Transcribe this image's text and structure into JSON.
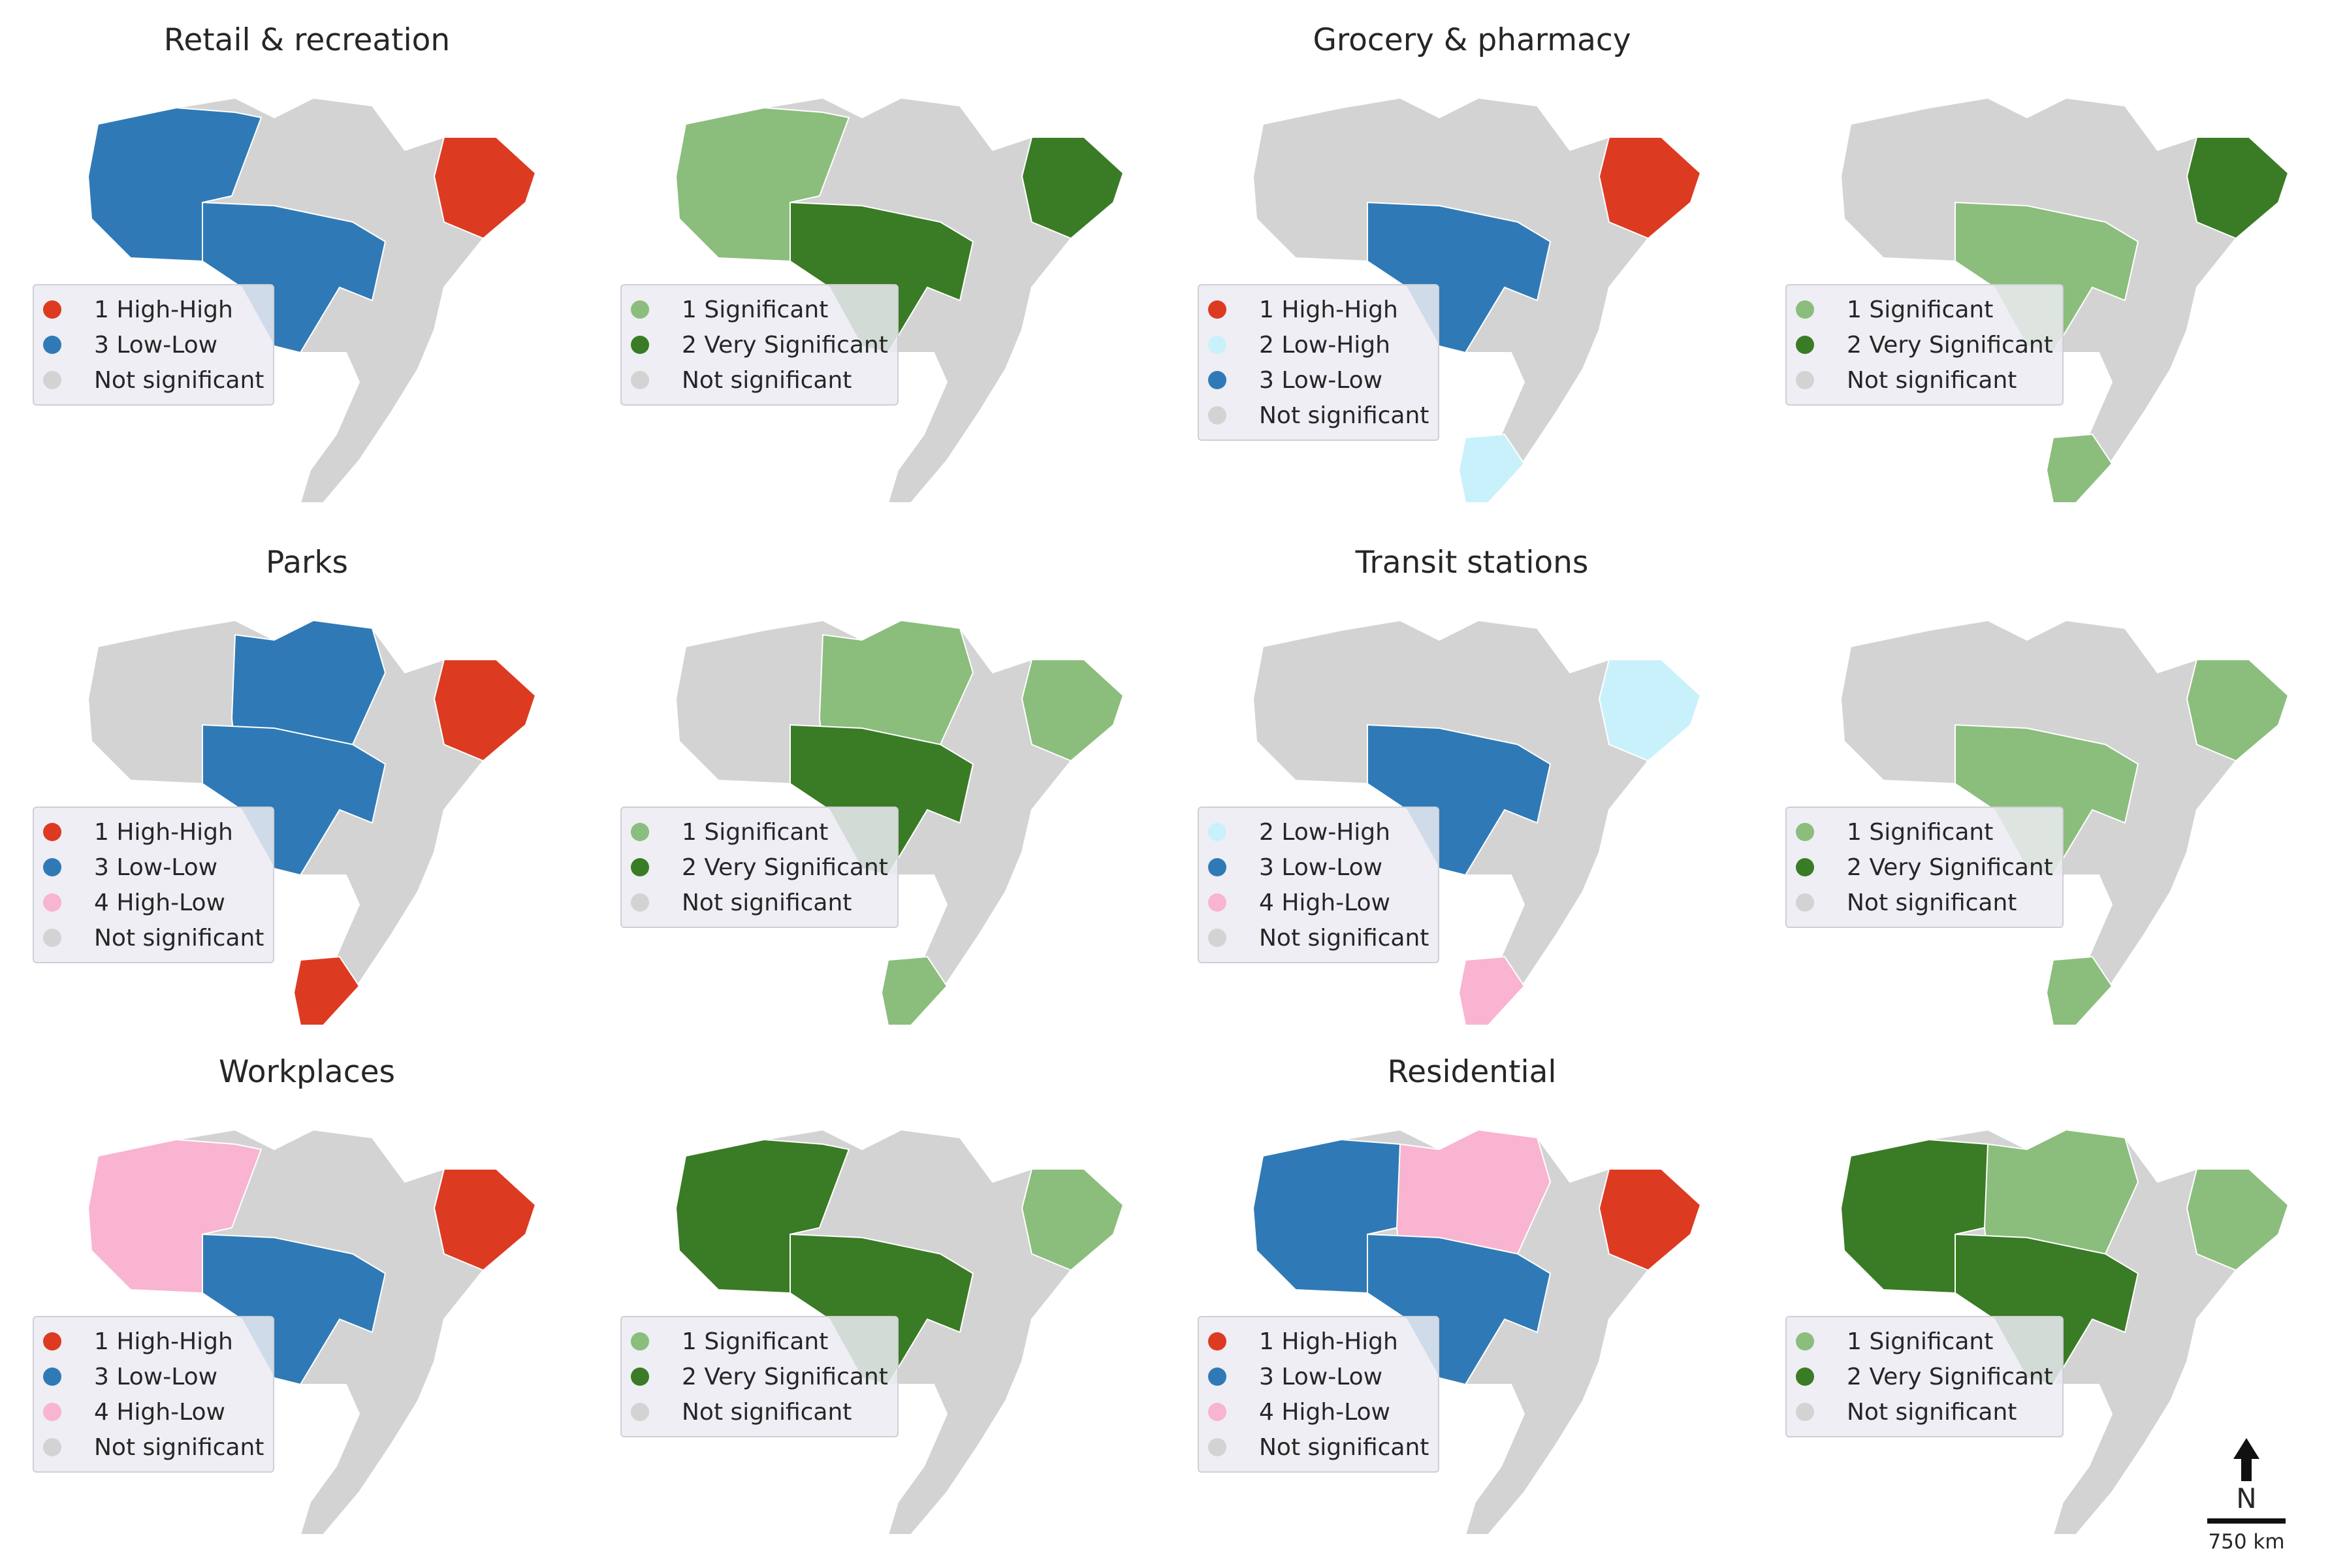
{
  "colors": {
    "high_high": "#dd3a22",
    "low_low": "#2f7ab6",
    "low_high": "#c9f1fb",
    "high_low": "#f8b4d0",
    "significant": "#8bbd7c",
    "very_significant": "#3a7b25",
    "not_significant": "#d3d3d3",
    "legend_background": "#eaeaf2"
  },
  "panels": [
    {
      "title": "Retail & recreation",
      "cluster_legend": [
        {
          "label": "1 High-High",
          "color": "#dd3a22"
        },
        {
          "label": "3 Low-Low",
          "color": "#2f7ab6"
        },
        {
          "label": "Not significant",
          "color": "#d3d3d3"
        }
      ],
      "significance_legend": [
        {
          "label": "1 Significant",
          "color": "#8bbd7c"
        },
        {
          "label": "2 Very Significant",
          "color": "#3a7b25"
        },
        {
          "label": "Not significant",
          "color": "#d3d3d3"
        }
      ],
      "cluster_regions": {
        "north_west": "low_low",
        "center_west": "low_low",
        "northeast": "high_high"
      },
      "significance_regions": {
        "north_west": "significant",
        "center_west": "very_significant",
        "northeast": "very_significant"
      }
    },
    {
      "title": "Grocery & pharmacy",
      "cluster_legend": [
        {
          "label": "1 High-High",
          "color": "#dd3a22"
        },
        {
          "label": "2 Low-High",
          "color": "#c9f1fb"
        },
        {
          "label": "3 Low-Low",
          "color": "#2f7ab6"
        },
        {
          "label": "Not significant",
          "color": "#d3d3d3"
        }
      ],
      "significance_legend": [
        {
          "label": "1 Significant",
          "color": "#8bbd7c"
        },
        {
          "label": "2 Very Significant",
          "color": "#3a7b25"
        },
        {
          "label": "Not significant",
          "color": "#d3d3d3"
        }
      ],
      "cluster_regions": {
        "center_west": "low_low",
        "northeast": "high_high",
        "south": "low_high"
      },
      "significance_regions": {
        "center_west": "significant",
        "northeast": "very_significant",
        "south": "significant"
      }
    },
    {
      "title": "Parks",
      "cluster_legend": [
        {
          "label": "1 High-High",
          "color": "#dd3a22"
        },
        {
          "label": "3 Low-Low",
          "color": "#2f7ab6"
        },
        {
          "label": "4 High-Low",
          "color": "#f8b4d0"
        },
        {
          "label": "Not significant",
          "color": "#d3d3d3"
        }
      ],
      "significance_legend": [
        {
          "label": "1 Significant",
          "color": "#8bbd7c"
        },
        {
          "label": "2 Very Significant",
          "color": "#3a7b25"
        },
        {
          "label": "Not significant",
          "color": "#d3d3d3"
        }
      ],
      "cluster_regions": {
        "north_east": "low_low",
        "center_west": "low_low",
        "northeast": "high_high",
        "south": "high_high"
      },
      "significance_regions": {
        "north_east": "significant",
        "center_west": "very_significant",
        "northeast": "significant",
        "south": "significant"
      }
    },
    {
      "title": "Transit stations",
      "cluster_legend": [
        {
          "label": "2 Low-High",
          "color": "#c9f1fb"
        },
        {
          "label": "3 Low-Low",
          "color": "#2f7ab6"
        },
        {
          "label": "4 High-Low",
          "color": "#f8b4d0"
        },
        {
          "label": "Not significant",
          "color": "#d3d3d3"
        }
      ],
      "significance_legend": [
        {
          "label": "1 Significant",
          "color": "#8bbd7c"
        },
        {
          "label": "2 Very Significant",
          "color": "#3a7b25"
        },
        {
          "label": "Not significant",
          "color": "#d3d3d3"
        }
      ],
      "cluster_regions": {
        "center_west": "low_low",
        "northeast": "low_high",
        "south": "high_low"
      },
      "significance_regions": {
        "center_west": "significant",
        "northeast": "significant",
        "south": "significant"
      }
    },
    {
      "title": "Workplaces",
      "cluster_legend": [
        {
          "label": "1 High-High",
          "color": "#dd3a22"
        },
        {
          "label": "3 Low-Low",
          "color": "#2f7ab6"
        },
        {
          "label": "4 High-Low",
          "color": "#f8b4d0"
        },
        {
          "label": "Not significant",
          "color": "#d3d3d3"
        }
      ],
      "significance_legend": [
        {
          "label": "1 Significant",
          "color": "#8bbd7c"
        },
        {
          "label": "2 Very Significant",
          "color": "#3a7b25"
        },
        {
          "label": "Not significant",
          "color": "#d3d3d3"
        }
      ],
      "cluster_regions": {
        "north_west": "high_low",
        "center_west": "low_low",
        "northeast": "high_high"
      },
      "significance_regions": {
        "north_west": "very_significant",
        "center_west": "very_significant",
        "northeast": "significant"
      }
    },
    {
      "title": "Residential",
      "cluster_legend": [
        {
          "label": "1 High-High",
          "color": "#dd3a22"
        },
        {
          "label": "3 Low-Low",
          "color": "#2f7ab6"
        },
        {
          "label": "4 High-Low",
          "color": "#f8b4d0"
        },
        {
          "label": "Not significant",
          "color": "#d3d3d3"
        }
      ],
      "significance_legend": [
        {
          "label": "1 Significant",
          "color": "#8bbd7c"
        },
        {
          "label": "2 Very Significant",
          "color": "#3a7b25"
        },
        {
          "label": "Not significant",
          "color": "#d3d3d3"
        }
      ],
      "cluster_regions": {
        "north_west": "low_low",
        "north_east": "high_low",
        "center_west": "low_low",
        "northeast": "high_high"
      },
      "significance_regions": {
        "north_west": "very_significant",
        "north_east": "significant",
        "center_west": "very_significant",
        "northeast": "significant"
      }
    }
  ],
  "north_arrow": {
    "label": "N"
  },
  "scale_bar": {
    "label": "750 km"
  }
}
